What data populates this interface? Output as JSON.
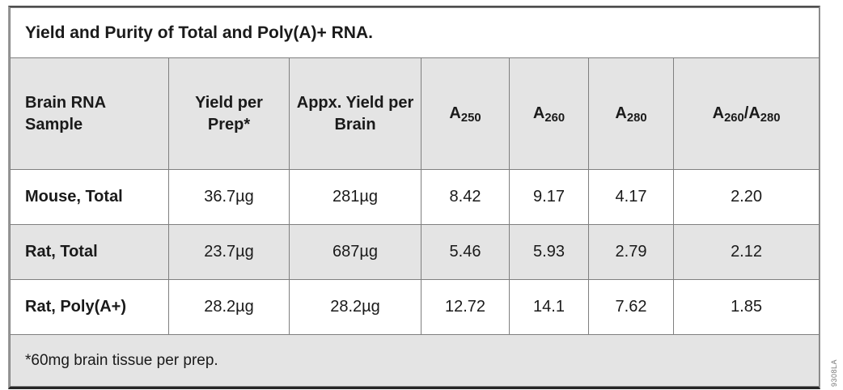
{
  "table": {
    "title": "Yield and Purity of Total and Poly(A)+ RNA.",
    "columns": [
      {
        "id": "sample",
        "align": "left",
        "parts": [
          {
            "text": "Brain RNA Sample"
          }
        ]
      },
      {
        "id": "yield-per-prep",
        "align": "center",
        "parts": [
          {
            "text": "Yield per Prep*"
          }
        ]
      },
      {
        "id": "yield-per-brain",
        "align": "center",
        "parts": [
          {
            "text": "Appx. Yield per Brain"
          }
        ]
      },
      {
        "id": "a250",
        "align": "center",
        "parts": [
          {
            "text": "A"
          },
          {
            "text": "250",
            "sub": true
          }
        ]
      },
      {
        "id": "a260",
        "align": "center",
        "parts": [
          {
            "text": "A"
          },
          {
            "text": "260",
            "sub": true
          }
        ]
      },
      {
        "id": "a280",
        "align": "center",
        "parts": [
          {
            "text": "A"
          },
          {
            "text": "280",
            "sub": true
          }
        ]
      },
      {
        "id": "a260-a280",
        "align": "center",
        "parts": [
          {
            "text": "A"
          },
          {
            "text": "260",
            "sub": true
          },
          {
            "text": "/A"
          },
          {
            "text": "280",
            "sub": true
          }
        ]
      }
    ],
    "rows": [
      {
        "sample": "Mouse, Total",
        "values": [
          "36.7µg",
          "281µg",
          "8.42",
          "9.17",
          "4.17",
          "2.20"
        ],
        "alt": false
      },
      {
        "sample": "Rat, Total",
        "values": [
          "23.7µg",
          "687µg",
          "5.46",
          "5.93",
          "2.79",
          "2.12"
        ],
        "alt": true
      },
      {
        "sample": "Rat, Poly(A+)",
        "values": [
          "28.2µg",
          "28.2µg",
          "12.72",
          "14.1",
          "7.62",
          "1.85"
        ],
        "alt": false
      }
    ],
    "footnote": "*60mg brain tissue per prep.",
    "colors": {
      "header_bg": "#e4e4e4",
      "alt_row_bg": "#e4e4e4",
      "row_bg": "#ffffff",
      "inner_border": "#7f7f7f",
      "outer_border_top": "#4f4f4f",
      "outer_border_sides": "#9a9a9a",
      "outer_border_bottom": "#262626",
      "text": "#1a1a1a"
    }
  },
  "side_code": "9308LA"
}
